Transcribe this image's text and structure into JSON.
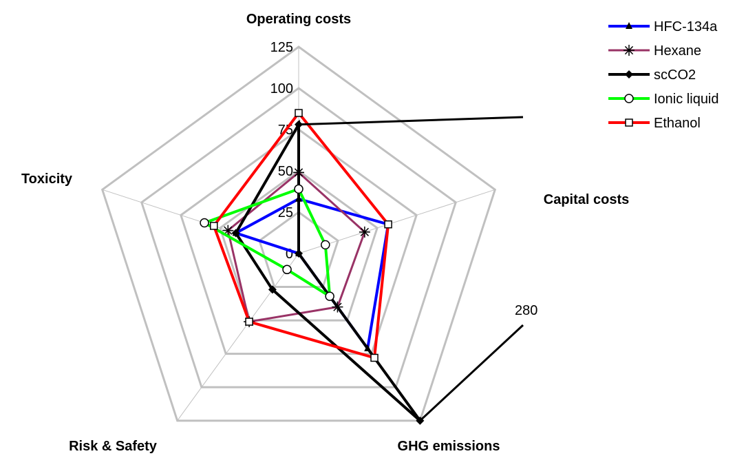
{
  "chart_data": {
    "type": "radar",
    "axes": [
      "Operating costs",
      "Capital costs",
      "GHG emissions",
      "Risk & Safety",
      "Toxicity"
    ],
    "r_ticks": [
      0,
      25,
      50,
      75,
      100,
      125
    ],
    "r_max": 125,
    "series": [
      {
        "name": "HFC-134a",
        "color": "#0000ff",
        "marker": "triangle",
        "values": [
          33,
          57,
          71,
          0,
          40
        ]
      },
      {
        "name": "Hexane",
        "color": "#993366",
        "marker": "asterisk",
        "values": [
          49,
          42,
          40,
          51,
          45
        ]
      },
      {
        "name": "scCO2",
        "color": "#000000",
        "marker": "diamond",
        "values": [
          78,
          0,
          280,
          27,
          40
        ],
        "clipped_to": 125
      },
      {
        "name": "Ionic liquid",
        "color": "#00ff00",
        "marker": "circle",
        "values": [
          39,
          17,
          32,
          12,
          60
        ]
      },
      {
        "name": "Ethanol",
        "color": "#ff0000",
        "marker": "square",
        "values": [
          85,
          57,
          78,
          51,
          54
        ]
      }
    ],
    "annotation": "280",
    "legend_position": "top-right",
    "grid": true
  }
}
